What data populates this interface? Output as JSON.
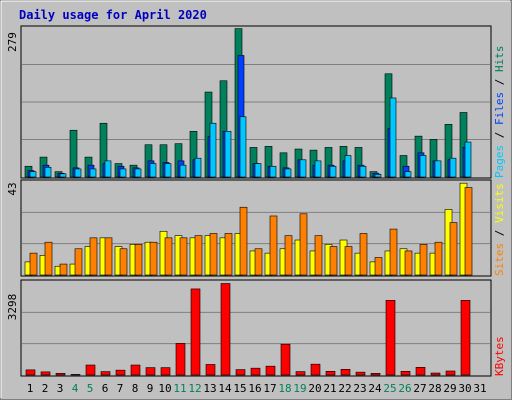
{
  "chart_data": {
    "type": "bar",
    "title": "Daily usage for April 2020",
    "categories": [
      "1",
      "2",
      "3",
      "4",
      "5",
      "6",
      "7",
      "8",
      "9",
      "10",
      "11",
      "12",
      "13",
      "14",
      "15",
      "16",
      "17",
      "18",
      "19",
      "20",
      "21",
      "22",
      "23",
      "24",
      "25",
      "26",
      "27",
      "28",
      "29",
      "30",
      "31"
    ],
    "weekend_categories": [
      "4",
      "5",
      "11",
      "12",
      "18",
      "19",
      "25",
      "26"
    ],
    "colors": {
      "background": "#c0c0c0",
      "title": "#0000c0",
      "hits": "#00805c",
      "files": "#0040ff",
      "pages": "#00c8ff",
      "visits": "#ffff00",
      "sites": "#ff8000",
      "kbytes": "#ff0000",
      "weekend_day": "#00805c",
      "weekday": "#000000"
    },
    "panels": [
      {
        "id": "hits",
        "ymax": 279,
        "ymax_label": "279",
        "legend": [
          "Pages",
          "Files",
          "Hits"
        ],
        "series": [
          {
            "name": "Hits",
            "values": [
              20,
              37,
              10,
              87,
              37,
              100,
              25,
              22,
              60,
              60,
              62,
              85,
              158,
              179,
              276,
              55,
              57,
              45,
              52,
              50,
              55,
              57,
              55,
              10,
              192,
              40,
              76,
              70,
              98,
              120,
              0
            ]
          },
          {
            "name": "Files",
            "values": [
              12,
              22,
              7,
              17,
              22,
              25,
              20,
              17,
              30,
              27,
              30,
              32,
              75,
              85,
              226,
              25,
              20,
              17,
              32,
              22,
              22,
              30,
              22,
              7,
              90,
              20,
              45,
              30,
              32,
              55,
              0
            ]
          },
          {
            "name": "Pages",
            "values": [
              10,
              18,
              6,
              15,
              15,
              30,
              15,
              15,
              25,
              25,
              22,
              35,
              100,
              85,
              112,
              25,
              20,
              15,
              32,
              30,
              20,
              40,
              20,
              5,
              147,
              10,
              40,
              30,
              35,
              65,
              0
            ]
          }
        ]
      },
      {
        "id": "visits",
        "ymax": 43,
        "ymax_label": "43",
        "legend": [
          "Sites",
          "Visits"
        ],
        "series": [
          {
            "name": "Visits",
            "values": [
              6,
              9,
              4,
              5,
              13,
              17,
              13,
              14,
              15,
              20,
              18,
              17,
              18,
              17,
              19,
              11,
              10,
              12,
              16,
              11,
              14,
              16,
              10,
              6,
              11,
              12,
              10,
              10,
              30,
              42,
              0
            ]
          },
          {
            "name": "Sites",
            "values": [
              10,
              15,
              5,
              12,
              17,
              17,
              12,
              14,
              15,
              17,
              17,
              18,
              19,
              19,
              31,
              12,
              27,
              18,
              28,
              18,
              13,
              13,
              19,
              8,
              21,
              11,
              14,
              15,
              24,
              40,
              0
            ]
          }
        ]
      },
      {
        "id": "kbytes",
        "ymax": 3298,
        "ymax_label": "3298",
        "legend": [
          "KBytes"
        ],
        "series": [
          {
            "name": "KBytes",
            "values": [
              180,
              110,
              60,
              20,
              350,
              120,
              170,
              350,
              260,
              260,
              1110,
              3020,
              370,
              3210,
              190,
              240,
              310,
              1080,
              120,
              380,
              130,
              200,
              100,
              60,
              2620,
              130,
              270,
              70,
              140,
              2620,
              0
            ]
          }
        ]
      }
    ]
  }
}
